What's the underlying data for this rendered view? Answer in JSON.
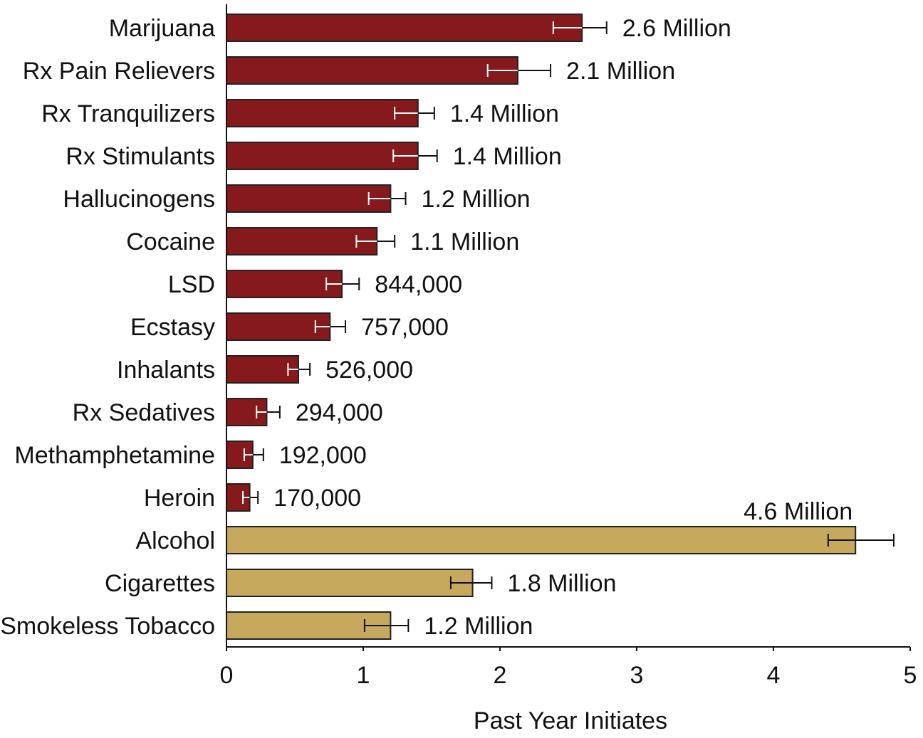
{
  "chart_data": {
    "type": "bar",
    "orientation": "horizontal",
    "xlabel": "Past Year Initiates",
    "xlim": [
      0,
      5
    ],
    "xticks": [
      0,
      1,
      2,
      3,
      4,
      5
    ],
    "xtick_labels": [
      "0",
      "1",
      "2",
      "3",
      "4",
      "5"
    ],
    "units": "millions",
    "colors": {
      "illicit": "#85191c",
      "licit": "#c6a95c",
      "error": "#111111",
      "error_inner": "#ffffff"
    },
    "bars": [
      {
        "category": "Marijuana",
        "value": 2.6,
        "err_low": 2.39,
        "err_high": 2.78,
        "label": "2.6 Million",
        "group": "illicit"
      },
      {
        "category": "Rx Pain Relievers",
        "value": 2.13,
        "err_low": 1.91,
        "err_high": 2.37,
        "label": "2.1 Million",
        "group": "illicit"
      },
      {
        "category": "Rx Tranquilizers",
        "value": 1.4,
        "err_low": 1.23,
        "err_high": 1.52,
        "label": "1.4 Million",
        "group": "illicit"
      },
      {
        "category": "Rx Stimulants",
        "value": 1.4,
        "err_low": 1.22,
        "err_high": 1.54,
        "label": "1.4 Million",
        "group": "illicit"
      },
      {
        "category": "Hallucinogens",
        "value": 1.2,
        "err_low": 1.04,
        "err_high": 1.31,
        "label": "1.2 Million",
        "group": "illicit"
      },
      {
        "category": "Cocaine",
        "value": 1.1,
        "err_low": 0.95,
        "err_high": 1.23,
        "label": "1.1 Million",
        "group": "illicit"
      },
      {
        "category": "LSD",
        "value": 0.844,
        "err_low": 0.73,
        "err_high": 0.97,
        "label": "844,000",
        "group": "illicit"
      },
      {
        "category": "Ecstasy",
        "value": 0.757,
        "err_low": 0.65,
        "err_high": 0.87,
        "label": "757,000",
        "group": "illicit"
      },
      {
        "category": "Inhalants",
        "value": 0.526,
        "err_low": 0.45,
        "err_high": 0.61,
        "label": "526,000",
        "group": "illicit"
      },
      {
        "category": "Rx Sedatives",
        "value": 0.294,
        "err_low": 0.22,
        "err_high": 0.39,
        "label": "294,000",
        "group": "illicit"
      },
      {
        "category": "Methamphetamine",
        "value": 0.192,
        "err_low": 0.13,
        "err_high": 0.27,
        "label": "192,000",
        "group": "illicit"
      },
      {
        "category": "Heroin",
        "value": 0.17,
        "err_low": 0.12,
        "err_high": 0.23,
        "label": "170,000",
        "group": "illicit"
      },
      {
        "category": "Alcohol",
        "value": 4.6,
        "err_low": 4.4,
        "err_high": 4.88,
        "label": "4.6 Million",
        "group": "licit",
        "label_position": "above"
      },
      {
        "category": "Cigarettes",
        "value": 1.8,
        "err_low": 1.64,
        "err_high": 1.94,
        "label": "1.8 Million",
        "group": "licit"
      },
      {
        "category": "Smokeless Tobacco",
        "value": 1.2,
        "err_low": 1.01,
        "err_high": 1.33,
        "label": "1.2 Million",
        "group": "licit"
      }
    ]
  }
}
